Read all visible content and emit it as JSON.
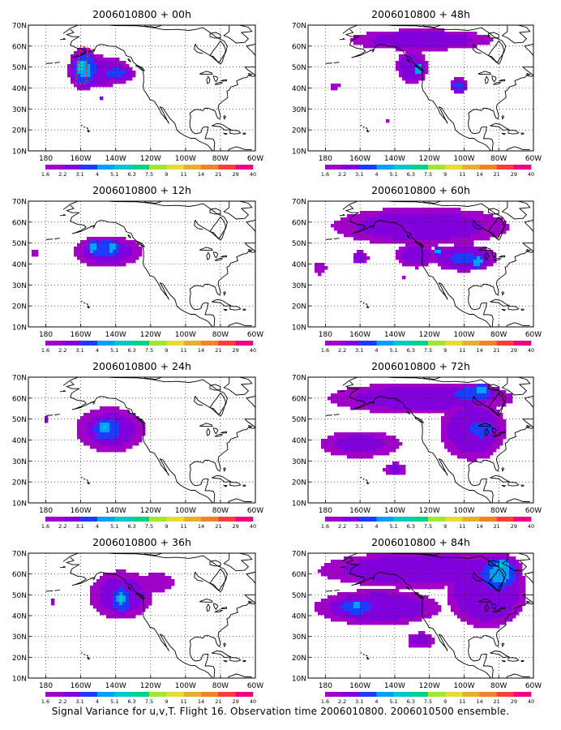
{
  "caption": "Signal Variance for u,v,T. Flight 16. Observation time 2006010800. 2006010500 ensemble.",
  "colors": {
    "scale": [
      "#a000c8",
      "#8200dc",
      "#1e3cff",
      "#00a0ff",
      "#00c8c8",
      "#00d28c",
      "#a0e632",
      "#e6dc32",
      "#e6af2d",
      "#f08228",
      "#fa3c3c",
      "#f00082"
    ],
    "coast": "#000000",
    "grid": "#000000",
    "contour_highlight": "#ff2020"
  },
  "chart_data": [
    {
      "type": "heatmap",
      "panel": "00h",
      "title": "2006010800 + 00h",
      "x_ticks": [
        "180",
        "160W",
        "140W",
        "120W",
        "100W",
        "80W",
        "60W"
      ],
      "y_ticks": [
        "10N",
        "20N",
        "30N",
        "40N",
        "50N",
        "60N",
        "70N"
      ],
      "xlim": [
        -190,
        -60
      ],
      "ylim": [
        10,
        70
      ],
      "grid": true,
      "colorbar_labels": [
        "1.6",
        "2.2",
        "3.1",
        "4",
        "5.1",
        "6.3",
        "7.5",
        "9",
        "11",
        "14",
        "21",
        "29",
        "40"
      ],
      "blobs": [
        {
          "lon": -150,
          "lat": 48,
          "rlon": 22,
          "rlat": 9,
          "v": 2.6
        },
        {
          "lon": -158,
          "lat": 49,
          "rlon": 9,
          "rlat": 10,
          "v": 4.2
        },
        {
          "lon": -140,
          "lat": 47,
          "rlon": 12,
          "rlat": 5,
          "v": 3.3
        },
        {
          "lon": -160,
          "lat": 50,
          "rlon": 4,
          "rlat": 5,
          "v": 5.6
        },
        {
          "lon": -148,
          "lat": 34.5,
          "rlon": 1.2,
          "rlat": 0.8,
          "v": 4.5
        }
      ],
      "highlight_contour": [
        [
          -163,
          42
        ],
        [
          -160,
          60
        ],
        [
          -156,
          59
        ],
        [
          -157,
          42
        ]
      ]
    },
    {
      "type": "heatmap",
      "panel": "12h",
      "title": "2006010800 + 12h",
      "x_ticks": [
        "180",
        "160W",
        "140W",
        "120W",
        "100W",
        "80W",
        "60W"
      ],
      "y_ticks": [
        "10N",
        "20N",
        "30N",
        "40N",
        "50N",
        "60N",
        "70N"
      ],
      "xlim": [
        -190,
        -60
      ],
      "ylim": [
        10,
        70
      ],
      "grid": true,
      "colorbar_labels": [
        "1.6",
        "2.2",
        "3.1",
        "4",
        "5.1",
        "6.3",
        "7.5",
        "9",
        "11",
        "14",
        "21",
        "29",
        "40"
      ],
      "blobs": [
        {
          "lon": -145,
          "lat": 46,
          "rlon": 24,
          "rlat": 9,
          "v": 2.6
        },
        {
          "lon": -146,
          "lat": 47,
          "rlon": 14,
          "rlat": 6,
          "v": 3.8
        },
        {
          "lon": -153,
          "lat": 48,
          "rlon": 3.5,
          "rlat": 3.5,
          "v": 5.0
        },
        {
          "lon": -142,
          "lat": 48,
          "rlon": 3.5,
          "rlat": 3.5,
          "v": 5.0
        },
        {
          "lon": -186,
          "lat": 45,
          "rlon": 4,
          "rlat": 3,
          "v": 2.0
        }
      ]
    },
    {
      "type": "heatmap",
      "panel": "24h",
      "title": "2006010800 + 24h",
      "x_ticks": [
        "180",
        "160W",
        "140W",
        "120W",
        "100W",
        "80W",
        "60W"
      ],
      "y_ticks": [
        "10N",
        "20N",
        "30N",
        "40N",
        "50N",
        "60N",
        "70N"
      ],
      "xlim": [
        -190,
        -60
      ],
      "ylim": [
        10,
        70
      ],
      "grid": true,
      "colorbar_labels": [
        "1.6",
        "2.2",
        "3.1",
        "4",
        "5.1",
        "6.3",
        "7.5",
        "9",
        "11",
        "14",
        "21",
        "29",
        "40"
      ],
      "blobs": [
        {
          "lon": -143,
          "lat": 45,
          "rlon": 24,
          "rlat": 13,
          "v": 2.6
        },
        {
          "lon": -145,
          "lat": 45,
          "rlon": 12,
          "rlat": 8,
          "v": 3.8
        },
        {
          "lon": -146,
          "lat": 46,
          "rlon": 4,
          "rlat": 4,
          "v": 5.2
        },
        {
          "lon": -146,
          "lat": 46,
          "rlon": 2,
          "rlat": 2,
          "v": 6.0
        },
        {
          "lon": -180,
          "lat": 50,
          "rlon": 2,
          "rlat": 2,
          "v": 2.4
        }
      ]
    },
    {
      "type": "heatmap",
      "panel": "36h",
      "title": "2006010800 + 36h",
      "x_ticks": [
        "180",
        "160W",
        "140W",
        "120W",
        "100W",
        "80W",
        "60W"
      ],
      "y_ticks": [
        "10N",
        "20N",
        "30N",
        "40N",
        "50N",
        "60N",
        "70N"
      ],
      "xlim": [
        -190,
        -60
      ],
      "ylim": [
        10,
        70
      ],
      "grid": true,
      "colorbar_labels": [
        "1.6",
        "2.2",
        "3.1",
        "4",
        "5.1",
        "6.3",
        "7.5",
        "9",
        "11",
        "14",
        "21",
        "29",
        "40"
      ],
      "blobs": [
        {
          "lon": -137,
          "lat": 50,
          "rlon": 22,
          "rlat": 14,
          "v": 2.6
        },
        {
          "lon": -117,
          "lat": 56,
          "rlon": 14,
          "rlat": 6,
          "v": 2.2
        },
        {
          "lon": -137,
          "lat": 48,
          "rlon": 8,
          "rlat": 9,
          "v": 3.8
        },
        {
          "lon": -137,
          "lat": 48,
          "rlon": 3.5,
          "rlat": 4,
          "v": 5.2
        },
        {
          "lon": -176,
          "lat": 47,
          "rlon": 2,
          "rlat": 2,
          "v": 2.4
        }
      ]
    },
    {
      "type": "heatmap",
      "panel": "48h",
      "title": "2006010800 + 48h",
      "x_ticks": [
        "180",
        "160W",
        "140W",
        "120W",
        "100W",
        "80W",
        "60W"
      ],
      "y_ticks": [
        "10N",
        "20N",
        "30N",
        "40N",
        "50N",
        "60N",
        "70N"
      ],
      "xlim": [
        -190,
        -60
      ],
      "ylim": [
        10,
        70
      ],
      "grid": true,
      "colorbar_labels": [
        "1.6",
        "2.2",
        "3.1",
        "4",
        "5.1",
        "6.3",
        "7.5",
        "9",
        "11",
        "14",
        "21",
        "29",
        "40"
      ],
      "blobs": [
        {
          "lon": -125,
          "lat": 63,
          "rlon": 50,
          "rlat": 6,
          "v": 2.6
        },
        {
          "lon": -130,
          "lat": 50,
          "rlon": 10,
          "rlat": 9,
          "v": 3.0
        },
        {
          "lon": -126,
          "lat": 49,
          "rlon": 3.5,
          "rlat": 4,
          "v": 4.5
        },
        {
          "lon": -103,
          "lat": 41,
          "rlon": 6,
          "rlat": 4,
          "v": 3.2
        },
        {
          "lon": -175,
          "lat": 41,
          "rlon": 4,
          "rlat": 2,
          "v": 2.2
        },
        {
          "lon": -145,
          "lat": 24,
          "rlon": 1.5,
          "rlat": 1.3,
          "v": 2.2
        }
      ]
    },
    {
      "type": "heatmap",
      "panel": "60h",
      "title": "2006010800 + 60h",
      "x_ticks": [
        "180",
        "160W",
        "140W",
        "120W",
        "100W",
        "80W",
        "60W"
      ],
      "y_ticks": [
        "10N",
        "20N",
        "30N",
        "40N",
        "50N",
        "60N",
        "70N"
      ],
      "xlim": [
        -190,
        -60
      ],
      "ylim": [
        10,
        70
      ],
      "grid": true,
      "colorbar_labels": [
        "1.6",
        "2.2",
        "3.1",
        "4",
        "5.1",
        "6.3",
        "7.5",
        "9",
        "11",
        "14",
        "21",
        "29",
        "40"
      ],
      "blobs": [
        {
          "lon": -125,
          "lat": 58,
          "rlon": 62,
          "rlat": 11,
          "v": 2.6
        },
        {
          "lon": -128,
          "lat": 44,
          "rlon": 14,
          "rlat": 7,
          "v": 2.6
        },
        {
          "lon": -100,
          "lat": 43,
          "rlon": 20,
          "rlat": 7,
          "v": 3.2
        },
        {
          "lon": -92,
          "lat": 41,
          "rlon": 4,
          "rlat": 4,
          "v": 4.6
        },
        {
          "lon": -115,
          "lat": 46,
          "rlon": 3,
          "rlat": 2.5,
          "v": 4.2
        },
        {
          "lon": -160,
          "lat": 43,
          "rlon": 6,
          "rlat": 4,
          "v": 2.4
        },
        {
          "lon": -183,
          "lat": 38,
          "rlon": 5,
          "rlat": 4,
          "v": 2.2
        },
        {
          "lon": -135,
          "lat": 33,
          "rlon": 1.3,
          "rlat": 1.3,
          "v": 2.0
        }
      ]
    },
    {
      "type": "heatmap",
      "panel": "72h",
      "title": "2006010800 + 72h",
      "x_ticks": [
        "180",
        "160W",
        "140W",
        "120W",
        "100W",
        "80W",
        "60W"
      ],
      "y_ticks": [
        "10N",
        "20N",
        "30N",
        "40N",
        "50N",
        "60N",
        "70N"
      ],
      "xlim": [
        -190,
        -60
      ],
      "ylim": [
        10,
        70
      ],
      "grid": true,
      "colorbar_labels": [
        "1.6",
        "2.2",
        "3.1",
        "4",
        "5.1",
        "6.3",
        "7.5",
        "9",
        "11",
        "14",
        "21",
        "29",
        "40"
      ],
      "blobs": [
        {
          "lon": -125,
          "lat": 60,
          "rlon": 65,
          "rlat": 9,
          "v": 2.6
        },
        {
          "lon": -160,
          "lat": 38,
          "rlon": 30,
          "rlat": 8,
          "v": 2.4
        },
        {
          "lon": -95,
          "lat": 45,
          "rlon": 22,
          "rlat": 17,
          "v": 2.8
        },
        {
          "lon": -90,
          "lat": 45,
          "rlon": 10,
          "rlat": 6,
          "v": 3.8
        },
        {
          "lon": -95,
          "lat": 62,
          "rlon": 18,
          "rlat": 5,
          "v": 3.6
        },
        {
          "lon": -90,
          "lat": 64,
          "rlon": 5,
          "rlat": 3,
          "v": 5.0
        },
        {
          "lon": -140,
          "lat": 26,
          "rlon": 8,
          "rlat": 4,
          "v": 2.4
        }
      ]
    },
    {
      "type": "heatmap",
      "panel": "84h",
      "title": "2006010800 + 84h",
      "x_ticks": [
        "180",
        "160W",
        "140W",
        "120W",
        "100W",
        "80W",
        "60W"
      ],
      "y_ticks": [
        "10N",
        "20N",
        "30N",
        "40N",
        "50N",
        "60N",
        "70N"
      ],
      "xlim": [
        -190,
        -60
      ],
      "ylim": [
        10,
        70
      ],
      "grid": true,
      "colorbar_labels": [
        "1.6",
        "2.2",
        "3.1",
        "4",
        "5.1",
        "6.3",
        "7.5",
        "9",
        "11",
        "14",
        "21",
        "29",
        "40"
      ],
      "blobs": [
        {
          "lon": -125,
          "lat": 62,
          "rlon": 68,
          "rlat": 10,
          "v": 2.8
        },
        {
          "lon": -150,
          "lat": 44,
          "rlon": 42,
          "rlat": 10,
          "v": 2.8
        },
        {
          "lon": -162,
          "lat": 44,
          "rlon": 14,
          "rlat": 5,
          "v": 3.8
        },
        {
          "lon": -162,
          "lat": 45,
          "rlon": 4,
          "rlat": 2,
          "v": 5.0
        },
        {
          "lon": -87,
          "lat": 52,
          "rlon": 26,
          "rlat": 20,
          "v": 3.0
        },
        {
          "lon": -80,
          "lat": 60,
          "rlon": 14,
          "rlat": 10,
          "v": 4.2
        },
        {
          "lon": -78,
          "lat": 64,
          "rlon": 5,
          "rlat": 4,
          "v": 5.2
        },
        {
          "lon": -125,
          "lat": 28,
          "rlon": 10,
          "rlat": 5,
          "v": 2.4
        }
      ]
    }
  ]
}
